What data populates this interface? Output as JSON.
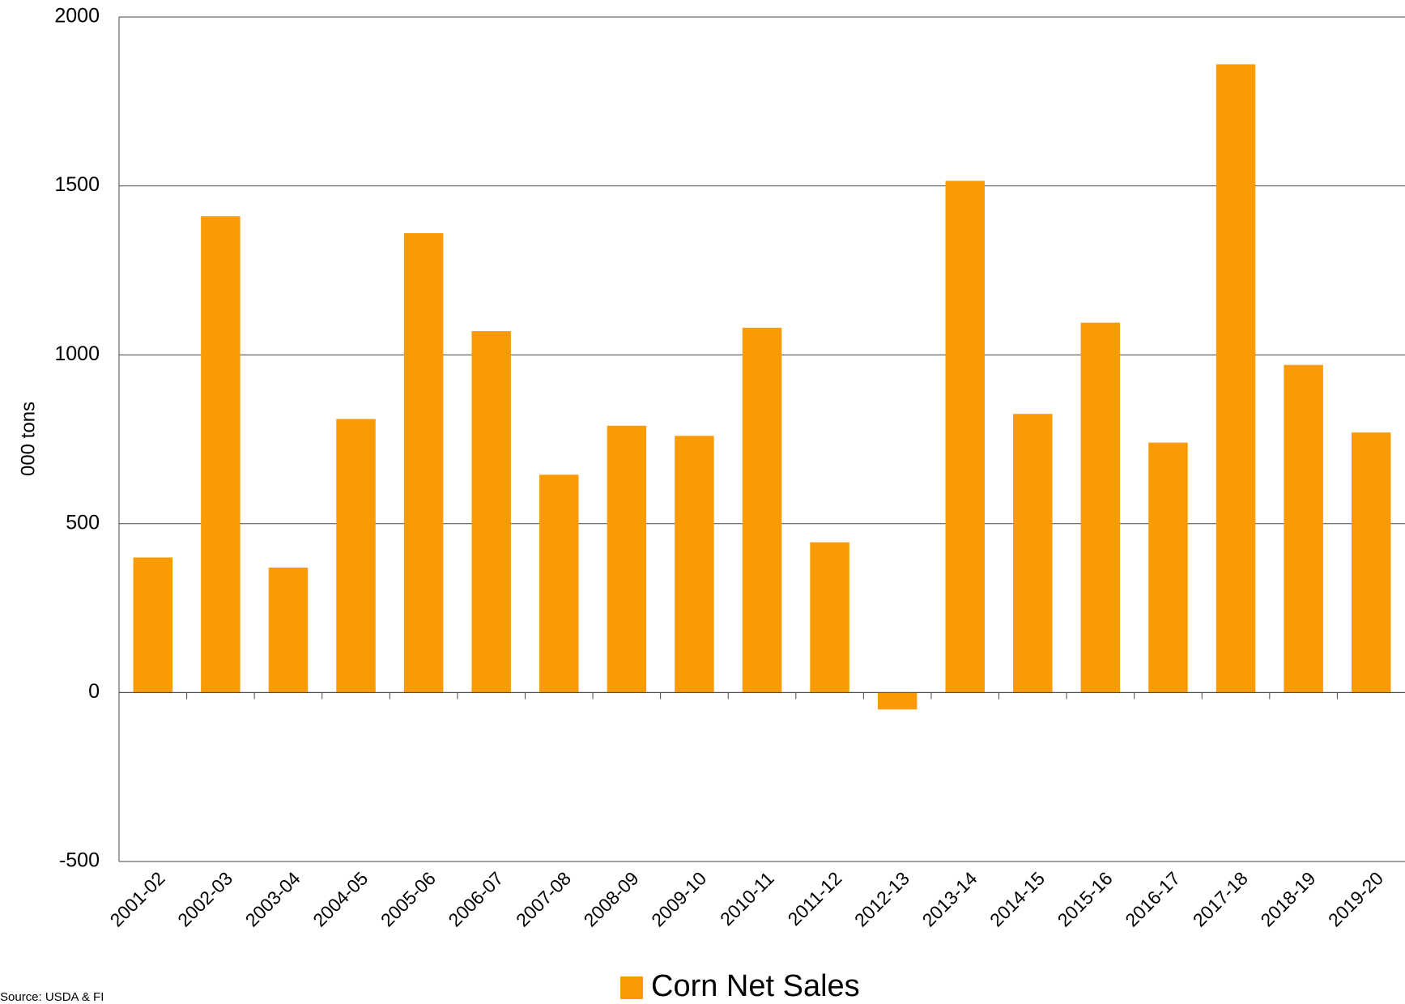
{
  "chart_data": {
    "type": "bar",
    "y_label": "000 tons",
    "source": "Source: USDA & FI",
    "categories": [
      "2001-02",
      "2002-03",
      "2003-04",
      "2004-05",
      "2005-06",
      "2006-07",
      "2007-08",
      "2008-09",
      "2009-10",
      "2010-11",
      "2011-12",
      "2012-13",
      "2013-14",
      "2014-15",
      "2015-16",
      "2016-17",
      "2017-18",
      "2018-19",
      "2019-20"
    ],
    "series": [
      {
        "name": "Corn Net Sales",
        "color": "#fa9b05",
        "values": [
          400,
          1410,
          370,
          810,
          1360,
          1070,
          645,
          790,
          760,
          1080,
          445,
          -50,
          1515,
          825,
          1095,
          740,
          1860,
          970,
          770
        ]
      }
    ],
    "ylim": [
      -500,
      2000
    ],
    "yticks": [
      -500,
      0,
      500,
      1000,
      1500,
      2000
    ],
    "grid": true,
    "legend": "bottom"
  }
}
